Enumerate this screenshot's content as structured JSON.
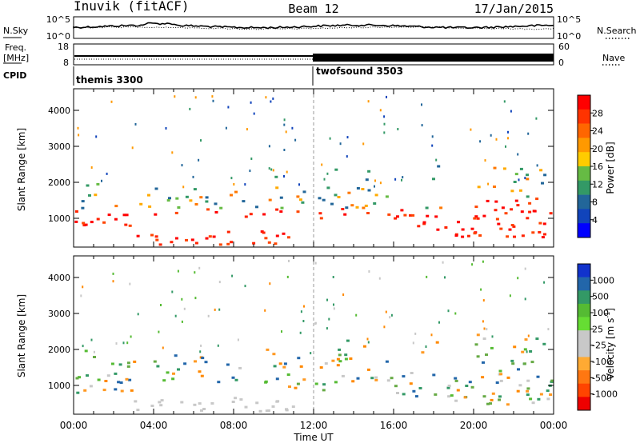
{
  "header": {
    "station": "Inuvik (fitACF)",
    "beam": "Beam 12",
    "date": "17/Jan/2015"
  },
  "noise_panel": {
    "left_label": "N.Sky",
    "left_ticks": [
      "10^5",
      "10^0"
    ],
    "right_ticks": [
      "10^5",
      "10^0"
    ],
    "right_label": "N.Search"
  },
  "freq_panel": {
    "left_label_1": "Freq.",
    "left_label_2": "[MHz]",
    "left_ticks": [
      "18",
      "8"
    ],
    "right_ticks": [
      "60",
      "0"
    ],
    "right_label": "Nave"
  },
  "cpid": {
    "label": "CPID",
    "segments": [
      {
        "name": "themis 3300",
        "start_hour": 0
      },
      {
        "name": "twofsound 3503",
        "start_hour": 12
      }
    ]
  },
  "chart_data": [
    {
      "type": "heatmap",
      "quantity": "Power",
      "ylabel": "Slant Range [km]",
      "yticks": [
        1000,
        2000,
        3000,
        4000
      ],
      "ylim": [
        200,
        4600
      ],
      "xlim_hours": [
        0,
        24
      ],
      "colorbar": {
        "label": "Power [dB]",
        "ticks": [
          "28",
          "24",
          "20",
          "16",
          "12",
          "8",
          "4"
        ],
        "colors": [
          "#ff0000",
          "#ff3300",
          "#ff6600",
          "#ff9900",
          "#ffcc00",
          "#66bb44",
          "#339966",
          "#226699",
          "#1144bb",
          "#0000ff"
        ]
      }
    },
    {
      "type": "heatmap",
      "quantity": "Velocity",
      "ylabel": "Slant Range [km]",
      "yticks": [
        1000,
        2000,
        3000,
        4000
      ],
      "ylim": [
        200,
        4600
      ],
      "xlim_hours": [
        0,
        24
      ],
      "colorbar": {
        "label": "Velocity [m s^-1]",
        "ticks": [
          "1000",
          "500",
          "100",
          "25",
          "-25",
          "-100",
          "-500",
          "-1000"
        ],
        "colors": [
          "#1133cc",
          "#2266aa",
          "#339966",
          "#55bb33",
          "#66dd33",
          "#c8c8c8",
          "#c8c8c8",
          "#ffaa33",
          "#ff7711",
          "#ff4400",
          "#ee0000"
        ]
      }
    }
  ],
  "xaxis": {
    "ticks": [
      "00:00",
      "04:00",
      "08:00",
      "12:00",
      "16:00",
      "20:00",
      "00:00"
    ],
    "label": "Time UT"
  }
}
